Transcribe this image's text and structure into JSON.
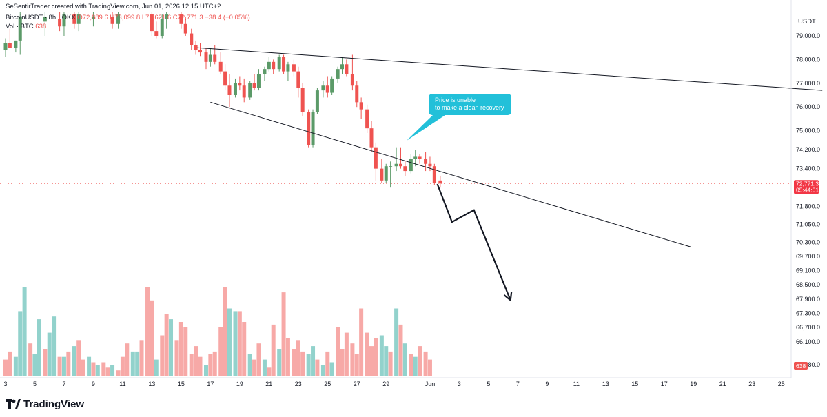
{
  "header": {
    "credit": "SeSentirTrader created with TradingView.com, Jun 01, 2026 12:15 UTC+2",
    "symbol": "BitcoinUSDT · 8h · OKX",
    "open": "O72,889.6",
    "high": "H73,099.8",
    "low": "L72,621.6",
    "close": "C72,771.3",
    "change": "−38.4 (−0.05%)",
    "vol_label": "Vol · BTC",
    "vol_value": "638"
  },
  "callout": {
    "line1": "Price is unable",
    "line2": "to make a clean recovery"
  },
  "brand": {
    "name": "TradingView",
    "logo_icon": "tradingview-logo-icon"
  },
  "colors": {
    "up": "#5b9a68",
    "down": "#ef5350",
    "vol_up": "#92d2cc",
    "vol_down": "#f7a9a7",
    "callout": "#22c0d9",
    "price_tag": "#f23645"
  },
  "chart_data": {
    "type": "candlestick",
    "symbol": "BitcoinUSDT",
    "interval": "8h",
    "exchange": "OKX",
    "y_unit": "USDT",
    "ylim": [
      65300,
      79900
    ],
    "last_price": {
      "value": "72,771.3",
      "countdown": "05:44:01"
    },
    "volume_last": "638",
    "y_ticks": [
      "79,000.0",
      "78,000.0",
      "77,000.0",
      "76,000.0",
      "75,000.0",
      "74,200.0",
      "73,400.0",
      "71,800.0",
      "71,050.0",
      "70,300.0",
      "69,700.0",
      "69,100.0",
      "68,500.0",
      "67,900.0",
      "67,300.0",
      "66,700.0",
      "66,100.0",
      "65,480.0"
    ],
    "x_ticks": [
      "3",
      "5",
      "7",
      "9",
      "11",
      "13",
      "15",
      "17",
      "19",
      "21",
      "23",
      "25",
      "27",
      "29",
      "Jun",
      "3",
      "5",
      "7",
      "9",
      "11",
      "13",
      "15",
      "17",
      "19",
      "21",
      "23",
      "25"
    ],
    "x_tick_days": [
      3,
      5,
      7,
      9,
      11,
      13,
      15,
      17,
      19,
      21,
      23,
      25,
      27,
      29,
      32,
      34,
      36,
      38,
      40,
      42,
      44,
      46,
      48,
      50,
      52,
      54,
      56
    ],
    "candles": [
      {
        "d": 3.0,
        "o": 78400,
        "h": 78900,
        "l": 78100,
        "c": 78700
      },
      {
        "d": 3.3,
        "o": 78700,
        "h": 79300,
        "l": 78500,
        "c": 78500
      },
      {
        "d": 3.7,
        "o": 78500,
        "h": 78800,
        "l": 78300,
        "c": 78800
      },
      {
        "d": 4.0,
        "o": 78800,
        "h": 80000,
        "l": 78200,
        "c": 79800
      },
      {
        "d": 5.7,
        "o": 79600,
        "h": 80000,
        "l": 79000,
        "c": 79800
      },
      {
        "d": 6.7,
        "o": 79700,
        "h": 80000,
        "l": 79200,
        "c": 79400
      },
      {
        "d": 7.0,
        "o": 79400,
        "h": 80000,
        "l": 79000,
        "c": 79900
      },
      {
        "d": 7.7,
        "o": 79900,
        "h": 80000,
        "l": 79300,
        "c": 79500
      },
      {
        "d": 8.0,
        "o": 79500,
        "h": 80000,
        "l": 79200,
        "c": 79900
      },
      {
        "d": 9.0,
        "o": 79700,
        "h": 80000,
        "l": 79400,
        "c": 79800
      },
      {
        "d": 10.3,
        "o": 79800,
        "h": 80000,
        "l": 79300,
        "c": 79500
      },
      {
        "d": 10.7,
        "o": 79500,
        "h": 80000,
        "l": 79300,
        "c": 79900
      },
      {
        "d": 13.0,
        "o": 79900,
        "h": 80000,
        "l": 79000,
        "c": 79200
      },
      {
        "d": 13.3,
        "o": 79200,
        "h": 79600,
        "l": 78900,
        "c": 79000
      },
      {
        "d": 13.7,
        "o": 79000,
        "h": 79900,
        "l": 78900,
        "c": 79700
      },
      {
        "d": 14.0,
        "o": 79700,
        "h": 80000,
        "l": 79300,
        "c": 79900
      },
      {
        "d": 15.0,
        "o": 79900,
        "h": 80000,
        "l": 79300,
        "c": 79500
      },
      {
        "d": 15.3,
        "o": 79500,
        "h": 79800,
        "l": 79000,
        "c": 79100
      },
      {
        "d": 15.7,
        "o": 79100,
        "h": 79300,
        "l": 78400,
        "c": 78600
      },
      {
        "d": 16.0,
        "o": 78600,
        "h": 78800,
        "l": 78200,
        "c": 78400
      },
      {
        "d": 16.3,
        "o": 78400,
        "h": 78700,
        "l": 78150,
        "c": 78300
      },
      {
        "d": 16.7,
        "o": 78300,
        "h": 78500,
        "l": 77600,
        "c": 77900
      },
      {
        "d": 17.0,
        "o": 77900,
        "h": 78500,
        "l": 77700,
        "c": 78200
      },
      {
        "d": 17.3,
        "o": 78200,
        "h": 78600,
        "l": 77800,
        "c": 77900
      },
      {
        "d": 17.7,
        "o": 77900,
        "h": 78300,
        "l": 77400,
        "c": 77500
      },
      {
        "d": 18.0,
        "o": 77500,
        "h": 77800,
        "l": 76700,
        "c": 76900
      },
      {
        "d": 18.3,
        "o": 76900,
        "h": 77400,
        "l": 76000,
        "c": 76500
      },
      {
        "d": 18.7,
        "o": 76500,
        "h": 77200,
        "l": 76400,
        "c": 77000
      },
      {
        "d": 19.0,
        "o": 77000,
        "h": 77300,
        "l": 76700,
        "c": 76900
      },
      {
        "d": 19.3,
        "o": 76900,
        "h": 77200,
        "l": 76200,
        "c": 76400
      },
      {
        "d": 19.7,
        "o": 76400,
        "h": 77100,
        "l": 76300,
        "c": 77000
      },
      {
        "d": 20.0,
        "o": 77000,
        "h": 77400,
        "l": 76700,
        "c": 76800
      },
      {
        "d": 20.3,
        "o": 76800,
        "h": 77600,
        "l": 76700,
        "c": 77400
      },
      {
        "d": 20.7,
        "o": 77400,
        "h": 77700,
        "l": 77100,
        "c": 77600
      },
      {
        "d": 21.0,
        "o": 77600,
        "h": 78100,
        "l": 77500,
        "c": 77900
      },
      {
        "d": 21.3,
        "o": 77900,
        "h": 78000,
        "l": 77400,
        "c": 77600
      },
      {
        "d": 21.7,
        "o": 77600,
        "h": 78200,
        "l": 77500,
        "c": 78100
      },
      {
        "d": 22.0,
        "o": 78100,
        "h": 78200,
        "l": 77400,
        "c": 77500
      },
      {
        "d": 22.3,
        "o": 77500,
        "h": 77900,
        "l": 77100,
        "c": 77800
      },
      {
        "d": 22.7,
        "o": 77800,
        "h": 78000,
        "l": 77300,
        "c": 77500
      },
      {
        "d": 23.0,
        "o": 77500,
        "h": 77700,
        "l": 76400,
        "c": 76800
      },
      {
        "d": 23.3,
        "o": 76800,
        "h": 77000,
        "l": 75600,
        "c": 75800
      },
      {
        "d": 23.7,
        "o": 75800,
        "h": 75900,
        "l": 74300,
        "c": 74400
      },
      {
        "d": 24.0,
        "o": 74400,
        "h": 75900,
        "l": 74300,
        "c": 75800
      },
      {
        "d": 24.3,
        "o": 75800,
        "h": 76800,
        "l": 75700,
        "c": 76700
      },
      {
        "d": 24.7,
        "o": 76700,
        "h": 77100,
        "l": 76400,
        "c": 76900
      },
      {
        "d": 25.0,
        "o": 76900,
        "h": 77300,
        "l": 76400,
        "c": 76600
      },
      {
        "d": 25.3,
        "o": 76600,
        "h": 77300,
        "l": 76500,
        "c": 77200
      },
      {
        "d": 25.7,
        "o": 77200,
        "h": 77700,
        "l": 77000,
        "c": 77600
      },
      {
        "d": 26.0,
        "o": 77600,
        "h": 78100,
        "l": 77400,
        "c": 77800
      },
      {
        "d": 26.3,
        "o": 77800,
        "h": 78000,
        "l": 77300,
        "c": 77400
      },
      {
        "d": 26.7,
        "o": 77400,
        "h": 78200,
        "l": 76700,
        "c": 76900
      },
      {
        "d": 27.0,
        "o": 76900,
        "h": 77100,
        "l": 76000,
        "c": 76200
      },
      {
        "d": 27.3,
        "o": 76200,
        "h": 76400,
        "l": 75500,
        "c": 75900
      },
      {
        "d": 27.7,
        "o": 75900,
        "h": 76100,
        "l": 74900,
        "c": 75100
      },
      {
        "d": 28.0,
        "o": 75100,
        "h": 75400,
        "l": 74100,
        "c": 74300
      },
      {
        "d": 28.3,
        "o": 74300,
        "h": 74500,
        "l": 72900,
        "c": 73400
      },
      {
        "d": 28.7,
        "o": 73400,
        "h": 73800,
        "l": 72800,
        "c": 72900
      },
      {
        "d": 29.0,
        "o": 72900,
        "h": 73600,
        "l": 72800,
        "c": 73500
      },
      {
        "d": 29.3,
        "o": 73500,
        "h": 73700,
        "l": 72600,
        "c": 73500
      },
      {
        "d": 29.7,
        "o": 73500,
        "h": 74300,
        "l": 73300,
        "c": 73600
      },
      {
        "d": 30.0,
        "o": 73600,
        "h": 74300,
        "l": 73400,
        "c": 73500
      },
      {
        "d": 30.3,
        "o": 73500,
        "h": 73700,
        "l": 73100,
        "c": 73300
      },
      {
        "d": 30.7,
        "o": 73300,
        "h": 74000,
        "l": 73200,
        "c": 73800
      },
      {
        "d": 31.0,
        "o": 73800,
        "h": 74200,
        "l": 73500,
        "c": 73900
      },
      {
        "d": 31.3,
        "o": 73900,
        "h": 74000,
        "l": 73600,
        "c": 73800
      },
      {
        "d": 31.7,
        "o": 73800,
        "h": 74100,
        "l": 73300,
        "c": 73600
      },
      {
        "d": 32.0,
        "o": 73600,
        "h": 73900,
        "l": 73300,
        "c": 73500
      },
      {
        "d": 32.3,
        "o": 73500,
        "h": 73600,
        "l": 72700,
        "c": 72800
      },
      {
        "d": 32.7,
        "o": 72900,
        "h": 73100,
        "l": 72600,
        "c": 72771
      }
    ],
    "volume": [
      {
        "d": 3.0,
        "v": 6,
        "up": false
      },
      {
        "d": 3.3,
        "v": 9,
        "up": false
      },
      {
        "d": 3.7,
        "v": 7,
        "up": true
      },
      {
        "d": 4.0,
        "v": 24,
        "up": true
      },
      {
        "d": 4.3,
        "v": 33,
        "up": true
      },
      {
        "d": 4.7,
        "v": 12,
        "up": false
      },
      {
        "d": 5.0,
        "v": 8,
        "up": true
      },
      {
        "d": 5.3,
        "v": 21,
        "up": true
      },
      {
        "d": 5.7,
        "v": 10,
        "up": false
      },
      {
        "d": 6.0,
        "v": 16,
        "up": true
      },
      {
        "d": 6.3,
        "v": 22,
        "up": true
      },
      {
        "d": 6.7,
        "v": 7,
        "up": false
      },
      {
        "d": 7.0,
        "v": 7,
        "up": true
      },
      {
        "d": 7.3,
        "v": 9,
        "up": false
      },
      {
        "d": 7.7,
        "v": 11,
        "up": true
      },
      {
        "d": 8.0,
        "v": 13,
        "up": false
      },
      {
        "d": 8.3,
        "v": 6,
        "up": false
      },
      {
        "d": 8.7,
        "v": 7,
        "up": true
      },
      {
        "d": 9.0,
        "v": 5,
        "up": false
      },
      {
        "d": 9.3,
        "v": 4,
        "up": true
      },
      {
        "d": 9.7,
        "v": 5,
        "up": false
      },
      {
        "d": 10.0,
        "v": 3,
        "up": false
      },
      {
        "d": 10.3,
        "v": 4,
        "up": true
      },
      {
        "d": 10.7,
        "v": 2,
        "up": false
      },
      {
        "d": 11.0,
        "v": 7,
        "up": false
      },
      {
        "d": 11.3,
        "v": 12,
        "up": false
      },
      {
        "d": 11.7,
        "v": 9,
        "up": true
      },
      {
        "d": 12.0,
        "v": 9,
        "up": true
      },
      {
        "d": 12.3,
        "v": 13,
        "up": false
      },
      {
        "d": 12.7,
        "v": 33,
        "up": false
      },
      {
        "d": 13.0,
        "v": 28,
        "up": false
      },
      {
        "d": 13.3,
        "v": 6,
        "up": true
      },
      {
        "d": 13.7,
        "v": 15,
        "up": false
      },
      {
        "d": 14.0,
        "v": 23,
        "up": false
      },
      {
        "d": 14.3,
        "v": 21,
        "up": true
      },
      {
        "d": 14.7,
        "v": 13,
        "up": false
      },
      {
        "d": 15.0,
        "v": 20,
        "up": false
      },
      {
        "d": 15.3,
        "v": 18,
        "up": false
      },
      {
        "d": 15.7,
        "v": 8,
        "up": false
      },
      {
        "d": 16.0,
        "v": 11,
        "up": false
      },
      {
        "d": 16.3,
        "v": 7,
        "up": false
      },
      {
        "d": 16.7,
        "v": 4,
        "up": true
      },
      {
        "d": 17.0,
        "v": 8,
        "up": false
      },
      {
        "d": 17.3,
        "v": 9,
        "up": false
      },
      {
        "d": 17.7,
        "v": 18,
        "up": false
      },
      {
        "d": 18.0,
        "v": 33,
        "up": false
      },
      {
        "d": 18.3,
        "v": 25,
        "up": true
      },
      {
        "d": 18.7,
        "v": 24,
        "up": true
      },
      {
        "d": 19.0,
        "v": 24,
        "up": false
      },
      {
        "d": 19.3,
        "v": 20,
        "up": false
      },
      {
        "d": 19.7,
        "v": 8,
        "up": true
      },
      {
        "d": 20.0,
        "v": 6,
        "up": false
      },
      {
        "d": 20.3,
        "v": 12,
        "up": false
      },
      {
        "d": 20.7,
        "v": 6,
        "up": true
      },
      {
        "d": 21.0,
        "v": 3,
        "up": false
      },
      {
        "d": 21.3,
        "v": 19,
        "up": false
      },
      {
        "d": 21.7,
        "v": 10,
        "up": true
      },
      {
        "d": 22.0,
        "v": 31,
        "up": false
      },
      {
        "d": 22.3,
        "v": 14,
        "up": false
      },
      {
        "d": 22.7,
        "v": 10,
        "up": false
      },
      {
        "d": 23.0,
        "v": 13,
        "up": false
      },
      {
        "d": 23.3,
        "v": 9,
        "up": false
      },
      {
        "d": 23.7,
        "v": 8,
        "up": true
      },
      {
        "d": 24.0,
        "v": 11,
        "up": true
      },
      {
        "d": 24.3,
        "v": 6,
        "up": false
      },
      {
        "d": 24.7,
        "v": 4,
        "up": true
      },
      {
        "d": 25.0,
        "v": 9,
        "up": false
      },
      {
        "d": 25.3,
        "v": 5,
        "up": true
      },
      {
        "d": 25.7,
        "v": 18,
        "up": false
      },
      {
        "d": 26.0,
        "v": 10,
        "up": false
      },
      {
        "d": 26.3,
        "v": 16,
        "up": false
      },
      {
        "d": 26.7,
        "v": 12,
        "up": false
      },
      {
        "d": 27.0,
        "v": 8,
        "up": false
      },
      {
        "d": 27.3,
        "v": 25,
        "up": false
      },
      {
        "d": 27.7,
        "v": 16,
        "up": false
      },
      {
        "d": 28.0,
        "v": 11,
        "up": false
      },
      {
        "d": 28.3,
        "v": 14,
        "up": false
      },
      {
        "d": 28.7,
        "v": 15,
        "up": true
      },
      {
        "d": 29.0,
        "v": 11,
        "up": true
      },
      {
        "d": 29.3,
        "v": 9,
        "up": false
      },
      {
        "d": 29.7,
        "v": 25,
        "up": true
      },
      {
        "d": 30.0,
        "v": 19,
        "up": false
      },
      {
        "d": 30.3,
        "v": 12,
        "up": true
      },
      {
        "d": 30.7,
        "v": 8,
        "up": false
      },
      {
        "d": 31.0,
        "v": 7,
        "up": true
      },
      {
        "d": 31.3,
        "v": 11,
        "up": false
      },
      {
        "d": 31.7,
        "v": 9,
        "up": false
      },
      {
        "d": 32.0,
        "v": 6,
        "up": false
      }
    ],
    "drawings": {
      "upper_trendline": [
        {
          "d": 16.1,
          "p": 78500
        },
        {
          "d": 58.8,
          "p": 76700
        }
      ],
      "lower_trendline": [
        {
          "d": 17.0,
          "p": 76200
        },
        {
          "d": 49.8,
          "p": 70100
        }
      ],
      "projection_path": [
        {
          "d": 32.5,
          "p": 72750
        },
        {
          "d": 33.5,
          "p": 71150
        },
        {
          "d": 35.0,
          "p": 71650
        },
        {
          "d": 37.5,
          "p": 67850
        }
      ]
    }
  }
}
